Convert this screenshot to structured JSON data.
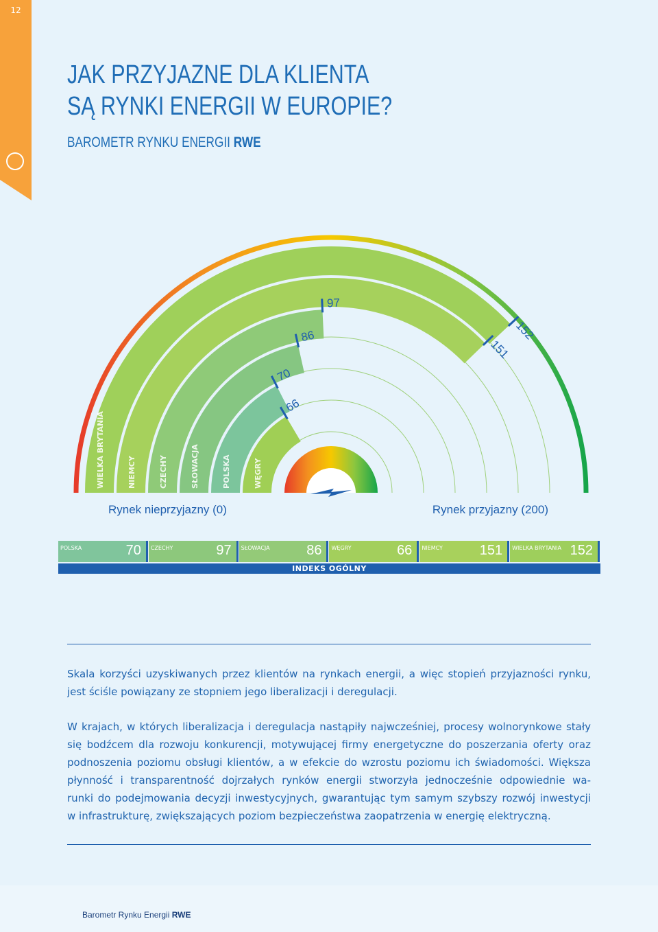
{
  "page_number": "12",
  "header": {
    "title_lines": [
      "JAK PRZYJAZNE DLA KLIENTA",
      "SĄ RYNKI ENERGII W EUROPIE?"
    ],
    "subtitle": "BAROMETR RYNKU ENERGII",
    "subtitle_brand": "RWE"
  },
  "gauge": {
    "range": [
      0,
      200
    ],
    "left_label": "Rynek nieprzyjazny (0)",
    "right_label": "Rynek przyjazny (200)",
    "rings": [
      {
        "name": "WIELKA BRYTANIA",
        "value": 152,
        "color": "#9fd05a"
      },
      {
        "name": "NIEMCY",
        "value": 151,
        "color": "#a6d15c"
      },
      {
        "name": "CZECHY",
        "value": 97,
        "color": "#8fca78"
      },
      {
        "name": "SŁOWACJA",
        "value": 86,
        "color": "#86c682"
      },
      {
        "name": "POLSKA",
        "value": 70,
        "color": "#7cc59c"
      },
      {
        "name": "WĘGRY",
        "value": 66,
        "color": "#a0cf55"
      }
    ]
  },
  "index_table": {
    "caption": "INDEKS OGÓLNY",
    "items": [
      {
        "name": "POLSKA",
        "value": 70,
        "color": "#80c59c"
      },
      {
        "name": "CZECHY",
        "value": 97,
        "color": "#8dc87c"
      },
      {
        "name": "SŁOWACJA",
        "value": 86,
        "color": "#94ca78"
      },
      {
        "name": "WĘGRY",
        "value": 66,
        "color": "#a3cf5c"
      },
      {
        "name": "NIEMCY",
        "value": 151,
        "color": "#a8d15c"
      },
      {
        "name": "WIELKA BRYTANIA",
        "value": 152,
        "color": "#9ecf5c"
      }
    ]
  },
  "paragraphs": [
    [
      "Skala korzyści uzyskiwanych przez klientów na rynkach energii, a więc stopień przyjazności rynku,",
      "jest ściśle powiązany ze stopniem jego liberalizacji i deregulacji."
    ],
    [
      "W krajach, w których liberalizacja i deregulacja nastąpiły najwcześniej, procesy wolnorynkowe stały",
      "się bodźcem dla rozwoju konkurencji, motywującej firmy energetyczne do poszerzania oferty oraz",
      "podnoszenia poziomu obsługi klientów, a w efekcie do wzrostu poziomu ich świadomości. Większa",
      "płynność i transparentność dojrzałych rynków energii stworzyła jednocześnie odpowiednie wa-",
      "runki do podejmowania decyzji inwestycyjnych, gwarantując tym samym szybszy rozwój inwestycji",
      "w infrastrukturę, zwiększających poziom bezpieczeństwa zaopatrzenia w energię elektryczną."
    ]
  ],
  "footer": {
    "text": "Barometr Rynku Energii",
    "brand": "RWE"
  }
}
